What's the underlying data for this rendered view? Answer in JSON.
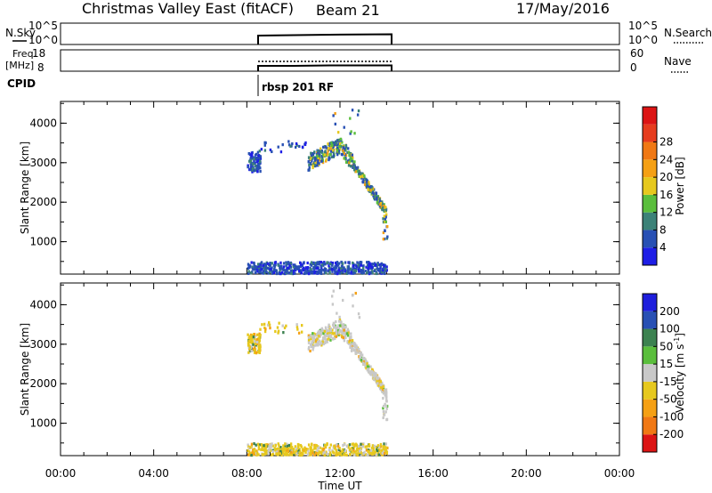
{
  "header": {
    "title": "Christmas Valley East (fitACF)",
    "beam": "Beam 21",
    "date": "17/May/2016"
  },
  "control_panels": {
    "nsky": {
      "label": "N.Sky",
      "left_ticks": [
        "10^5",
        "10^0"
      ],
      "right_ticks": [
        "10^5",
        "10^0"
      ],
      "right_label": "N.Search"
    },
    "freq": {
      "label_line1": "Freq.",
      "label_line2": "[MHz]",
      "left_ticks": [
        "18",
        "8"
      ],
      "right_ticks": [
        "60",
        "0"
      ],
      "right_label": "Nave"
    },
    "cpid": {
      "label": "CPID",
      "mode_text": "rbsp 201 RF"
    }
  },
  "chart_data": [
    {
      "type": "heatmap",
      "title": "",
      "xlabel": "",
      "ylabel": "Slant Range [km]",
      "xlim": [
        0,
        24
      ],
      "ylim": [
        180,
        4550
      ],
      "yticks": [
        "1000",
        "2000",
        "3000",
        "4000"
      ],
      "colorbar": {
        "label": "Power [dB]",
        "tick_labels": [
          "4",
          "8",
          "12",
          "16",
          "20",
          "24",
          "28"
        ],
        "colors": [
          "#1e1ee6",
          "#2850b4",
          "#3c8278",
          "#5abe3c",
          "#e6c81e",
          "#f5a014",
          "#f07814",
          "#e63c1e",
          "#dc1414"
        ],
        "range": [
          0,
          32
        ]
      },
      "scatter_bands": [
        {
          "time": [
            8.0,
            9.8
          ],
          "range": [
            2800,
            3600
          ],
          "value": "low"
        },
        {
          "time": [
            10.5,
            13.7
          ],
          "range": [
            1700,
            3700
          ],
          "value": "mixed"
        },
        {
          "time": [
            8.0,
            14.0
          ],
          "range": [
            180,
            480
          ],
          "value": "low"
        }
      ]
    },
    {
      "type": "heatmap",
      "title": "",
      "xlabel": "Time UT",
      "ylabel": "Slant Range [km]",
      "xlim": [
        0,
        24
      ],
      "ylim": [
        180,
        4550
      ],
      "xticks": [
        "00:00",
        "04:00",
        "08:00",
        "12:00",
        "16:00",
        "20:00",
        "00:00"
      ],
      "yticks": [
        "1000",
        "2000",
        "3000",
        "4000"
      ],
      "colorbar": {
        "label": "Velocity [m s^-1]",
        "tick_labels": [
          "200",
          "100",
          "50",
          "15",
          "-15",
          "-50",
          "-100",
          "-200"
        ],
        "colors": [
          "#1e1edc",
          "#2850b4",
          "#3c8250",
          "#5abe3c",
          "#c8c8c8",
          "#e6c81e",
          "#f5a014",
          "#f07814",
          "#dc1414"
        ],
        "range": [
          -250,
          250
        ]
      },
      "scatter_bands": [
        {
          "time": [
            8.0,
            9.8
          ],
          "range": [
            2800,
            3600
          ],
          "value": "negative"
        },
        {
          "time": [
            10.5,
            13.7
          ],
          "range": [
            1700,
            3700
          ],
          "value": "near-zero"
        },
        {
          "time": [
            8.0,
            14.0
          ],
          "range": [
            180,
            480
          ],
          "value": "negative"
        }
      ]
    }
  ]
}
